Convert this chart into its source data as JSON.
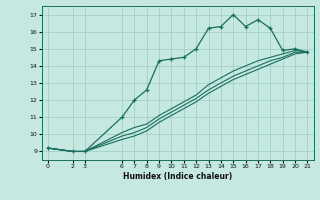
{
  "xlabel": "Humidex (Indice chaleur)",
  "ylabel": "",
  "background_color": "#c5e8e0",
  "grid_color": "#9eccc3",
  "line_color": "#1a6e60",
  "xlim": [
    -0.5,
    21.5
  ],
  "ylim": [
    8.5,
    17.5
  ],
  "xticks": [
    0,
    2,
    3,
    6,
    7,
    8,
    9,
    10,
    11,
    12,
    13,
    14,
    15,
    16,
    17,
    18,
    19,
    20,
    21
  ],
  "yticks": [
    9,
    10,
    11,
    12,
    13,
    14,
    15,
    16,
    17
  ],
  "line1_x": [
    0,
    2,
    3,
    6,
    7,
    8,
    9,
    10,
    11,
    12,
    13,
    14,
    15,
    16,
    17,
    18,
    19,
    20,
    21
  ],
  "line1_y": [
    9.2,
    9.0,
    9.0,
    11.0,
    12.0,
    12.6,
    14.3,
    14.4,
    14.5,
    15.0,
    16.2,
    16.3,
    17.0,
    16.3,
    16.7,
    16.2,
    14.9,
    15.0,
    14.8
  ],
  "line2_x": [
    0,
    2,
    3,
    6,
    7,
    8,
    9,
    10,
    11,
    12,
    13,
    14,
    15,
    16,
    17,
    18,
    19,
    20,
    21
  ],
  "line2_y": [
    9.2,
    9.0,
    9.0,
    10.1,
    10.4,
    10.6,
    11.1,
    11.5,
    11.9,
    12.3,
    12.9,
    13.3,
    13.7,
    14.0,
    14.3,
    14.5,
    14.7,
    14.9,
    14.8
  ],
  "line3_x": [
    0,
    2,
    3,
    6,
    7,
    8,
    9,
    10,
    11,
    12,
    13,
    14,
    15,
    16,
    17,
    18,
    19,
    20,
    21
  ],
  "line3_y": [
    9.2,
    9.0,
    9.0,
    9.9,
    10.1,
    10.4,
    10.9,
    11.3,
    11.7,
    12.1,
    12.6,
    13.0,
    13.4,
    13.7,
    14.0,
    14.3,
    14.5,
    14.8,
    14.8
  ],
  "line4_x": [
    0,
    2,
    3,
    6,
    7,
    8,
    9,
    10,
    11,
    12,
    13,
    14,
    15,
    16,
    17,
    18,
    19,
    20,
    21
  ],
  "line4_y": [
    9.2,
    9.0,
    9.0,
    9.7,
    9.9,
    10.2,
    10.7,
    11.1,
    11.5,
    11.9,
    12.4,
    12.8,
    13.2,
    13.5,
    13.8,
    14.1,
    14.4,
    14.7,
    14.8
  ]
}
